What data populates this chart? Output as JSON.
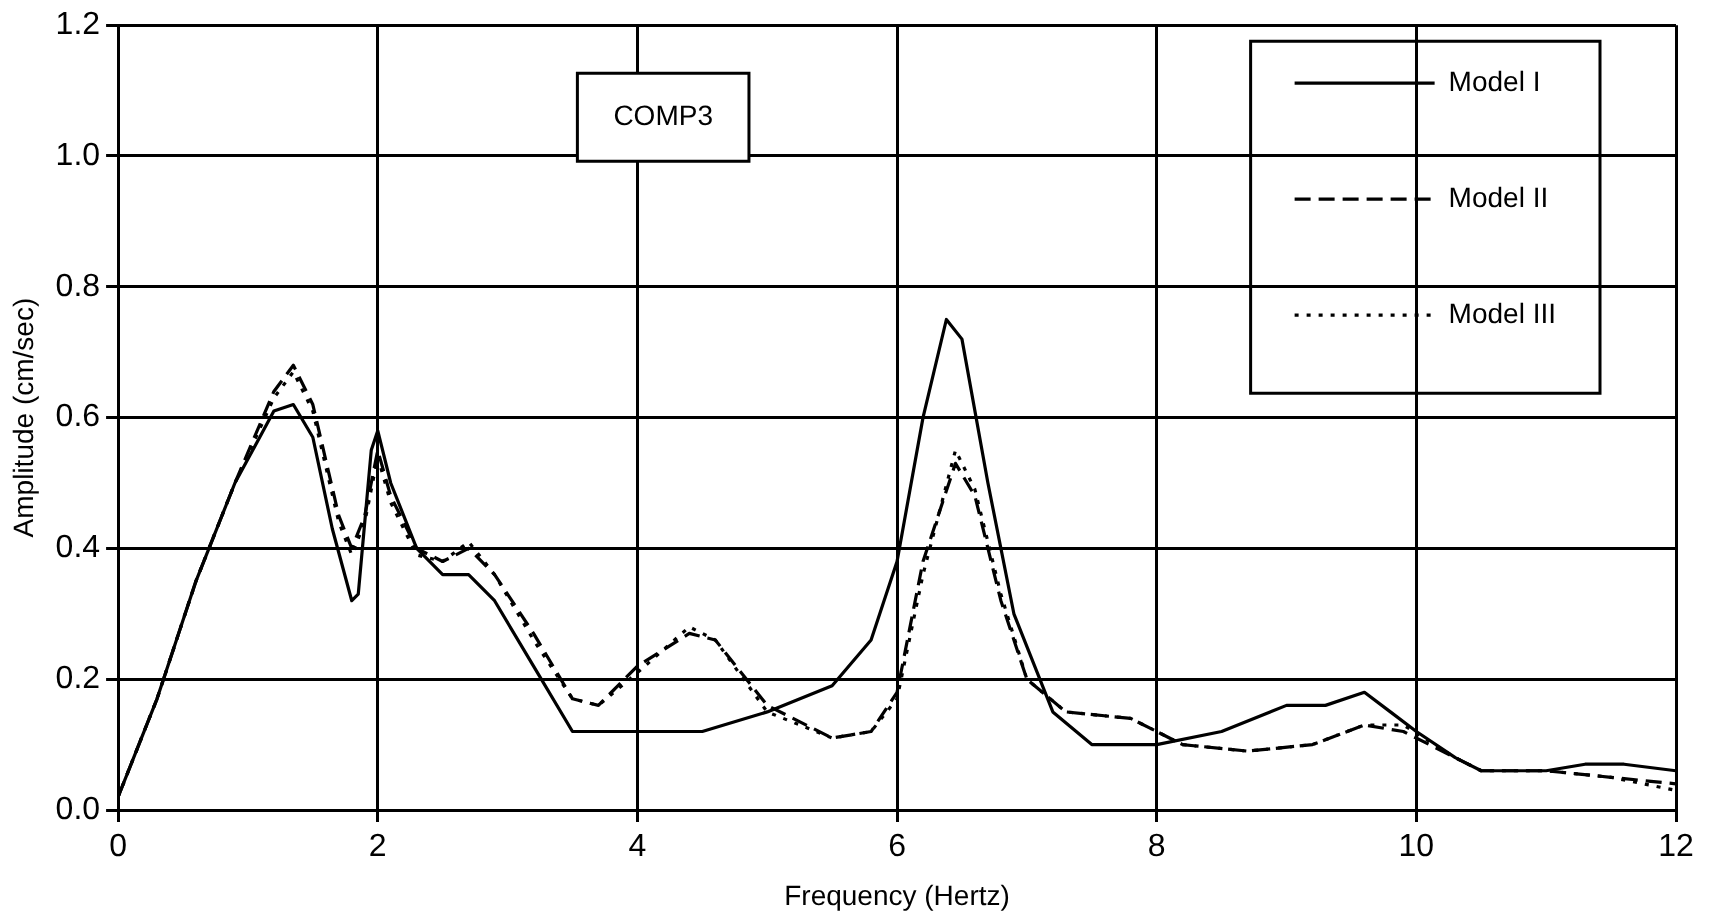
{
  "chart_data": {
    "type": "line",
    "title": "COMP3",
    "xlabel": "Frequency (Hertz)",
    "ylabel": "Amplitude (cm/sec)",
    "xlim": [
      0,
      12
    ],
    "xticks": [
      0,
      2,
      4,
      6,
      8,
      10,
      12
    ],
    "ylim": [
      0,
      1.2
    ],
    "yticks": [
      {
        "value": 0,
        "label": "0.0"
      },
      0.2,
      0.4,
      0.6,
      0.8,
      {
        "value": 1,
        "label": "1.0"
      },
      1.2
    ],
    "grid": true,
    "legend": "top right",
    "marker": "none",
    "series": [
      {
        "name": "Model I",
        "color": "#000000",
        "line_style": "solid",
        "x": [
          0,
          0.3,
          0.6,
          0.9,
          1.2,
          1.35,
          1.5,
          1.65,
          1.8,
          1.85,
          1.95,
          2.0,
          2.1,
          2.3,
          2.5,
          2.7,
          2.9,
          3.2,
          3.5,
          3.8,
          4.5,
          5.0,
          5.5,
          5.8,
          6.0,
          6.2,
          6.38,
          6.5,
          6.7,
          6.9,
          7.2,
          7.5,
          8.0,
          8.5,
          9.0,
          9.3,
          9.6,
          9.8,
          10.0,
          10.3,
          10.5,
          11.0,
          11.3,
          11.6,
          12
        ],
        "values": [
          0.02,
          0.17,
          0.35,
          0.5,
          0.61,
          0.62,
          0.57,
          0.43,
          0.32,
          0.33,
          0.55,
          0.58,
          0.5,
          0.4,
          0.36,
          0.36,
          0.32,
          0.22,
          0.12,
          0.12,
          0.12,
          0.15,
          0.19,
          0.26,
          0.38,
          0.6,
          0.75,
          0.72,
          0.5,
          0.3,
          0.15,
          0.1,
          0.1,
          0.12,
          0.16,
          0.16,
          0.18,
          0.15,
          0.12,
          0.08,
          0.06,
          0.06,
          0.07,
          0.07,
          0.06
        ]
      },
      {
        "name": "Model II",
        "color": "#000000",
        "line_style": "dashed",
        "x": [
          0,
          0.3,
          0.6,
          0.9,
          1.2,
          1.35,
          1.5,
          1.7,
          1.8,
          1.9,
          2.0,
          2.1,
          2.3,
          2.5,
          2.7,
          2.9,
          3.2,
          3.5,
          3.7,
          4.0,
          4.4,
          4.6,
          5.0,
          5.5,
          5.8,
          6.0,
          6.2,
          6.45,
          6.6,
          6.8,
          7.0,
          7.3,
          7.8,
          8.2,
          8.7,
          9.2,
          9.6,
          9.9,
          10.3,
          10.5,
          11.0,
          11.5,
          12
        ],
        "values": [
          0.02,
          0.17,
          0.35,
          0.5,
          0.64,
          0.68,
          0.62,
          0.45,
          0.4,
          0.45,
          0.55,
          0.48,
          0.4,
          0.38,
          0.4,
          0.36,
          0.27,
          0.17,
          0.16,
          0.22,
          0.27,
          0.26,
          0.16,
          0.11,
          0.12,
          0.18,
          0.38,
          0.53,
          0.48,
          0.32,
          0.2,
          0.15,
          0.14,
          0.1,
          0.09,
          0.1,
          0.13,
          0.12,
          0.08,
          0.06,
          0.06,
          0.05,
          0.04
        ]
      },
      {
        "name": "Model III",
        "color": "#000000",
        "line_style": "dotted",
        "x": [
          0,
          0.3,
          0.6,
          0.9,
          1.2,
          1.35,
          1.5,
          1.7,
          1.8,
          1.9,
          2.0,
          2.1,
          2.3,
          2.5,
          2.7,
          2.9,
          3.2,
          3.5,
          3.7,
          4.0,
          4.4,
          4.6,
          5.0,
          5.5,
          5.8,
          6.0,
          6.2,
          6.45,
          6.6,
          6.8,
          7.0,
          7.3,
          7.8,
          8.2,
          8.7,
          9.2,
          9.6,
          9.9,
          10.3,
          10.5,
          11.0,
          11.5,
          12
        ],
        "values": [
          0.02,
          0.17,
          0.35,
          0.5,
          0.63,
          0.67,
          0.61,
          0.44,
          0.39,
          0.44,
          0.54,
          0.47,
          0.39,
          0.38,
          0.41,
          0.36,
          0.26,
          0.17,
          0.16,
          0.21,
          0.28,
          0.26,
          0.15,
          0.11,
          0.12,
          0.17,
          0.36,
          0.55,
          0.49,
          0.33,
          0.2,
          0.15,
          0.14,
          0.1,
          0.09,
          0.1,
          0.13,
          0.13,
          0.08,
          0.06,
          0.06,
          0.05,
          0.03
        ]
      }
    ]
  }
}
